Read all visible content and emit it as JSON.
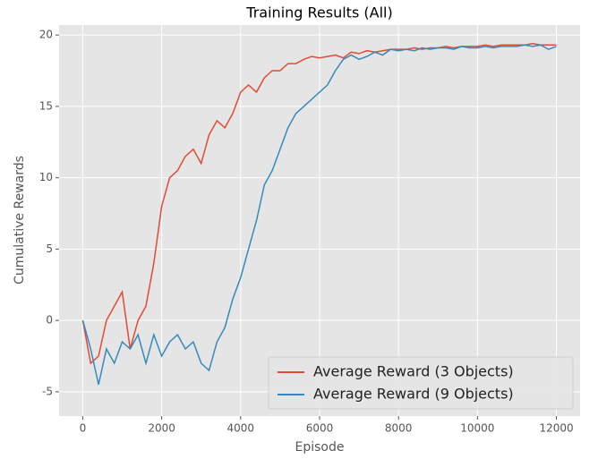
{
  "chart_data": {
    "type": "line",
    "title": "Training Results (All)",
    "xlabel": "Episode",
    "ylabel": "Cumulative Rewards",
    "x": [
      0,
      200,
      400,
      600,
      800,
      1000,
      1200,
      1400,
      1600,
      1800,
      2000,
      2200,
      2400,
      2600,
      2800,
      3000,
      3200,
      3400,
      3600,
      3800,
      4000,
      4200,
      4400,
      4600,
      4800,
      5000,
      5200,
      5400,
      5600,
      5800,
      6000,
      6200,
      6400,
      6600,
      6800,
      7000,
      7200,
      7400,
      7600,
      7800,
      8000,
      8200,
      8400,
      8600,
      8800,
      9000,
      9200,
      9400,
      9600,
      9800,
      10000,
      10200,
      10400,
      10600,
      10800,
      11000,
      11200,
      11400,
      11600,
      11800,
      12000
    ],
    "series": [
      {
        "name": "Average Reward (3 Objects)",
        "color": "#E24A33",
        "values": [
          0,
          -3,
          -2.5,
          0,
          1,
          2,
          -2,
          0,
          1,
          4,
          8,
          10,
          10.5,
          11.5,
          12,
          11,
          13,
          14,
          13.5,
          14.5,
          16,
          16.5,
          16,
          17,
          17.5,
          17.5,
          18,
          18,
          18.3,
          18.5,
          18.4,
          18.5,
          18.6,
          18.4,
          18.8,
          18.7,
          18.9,
          18.8,
          18.9,
          19,
          19,
          19,
          19.1,
          19,
          19.1,
          19.1,
          19.2,
          19.1,
          19.2,
          19.2,
          19.2,
          19.3,
          19.2,
          19.3,
          19.3,
          19.3,
          19.3,
          19.4,
          19.3,
          19.3,
          19.3
        ]
      },
      {
        "name": "Average Reward (9 Objects)",
        "color": "#348ABD",
        "values": [
          0,
          -2,
          -4.5,
          -2,
          -3,
          -1.5,
          -2,
          -1,
          -3,
          -1,
          -2.5,
          -1.5,
          -1,
          -2,
          -1.5,
          -3,
          -3.5,
          -1.5,
          -0.5,
          1.5,
          3,
          5,
          7,
          9.5,
          10.5,
          12,
          13.5,
          14.5,
          15,
          15.5,
          16,
          16.5,
          17.5,
          18.3,
          18.6,
          18.3,
          18.5,
          18.8,
          18.6,
          19,
          18.9,
          19,
          18.9,
          19.1,
          19,
          19.1,
          19.1,
          19,
          19.2,
          19.1,
          19.1,
          19.2,
          19.1,
          19.2,
          19.2,
          19.2,
          19.3,
          19.2,
          19.3,
          19,
          19.2
        ]
      }
    ],
    "xlim": [
      -600,
      12600
    ],
    "ylim": [
      -6.7,
      20.7
    ],
    "xticks": [
      0,
      2000,
      4000,
      6000,
      8000,
      10000,
      12000
    ],
    "yticks": [
      -5,
      0,
      5,
      10,
      15,
      20
    ],
    "grid": true,
    "legend": "lower right"
  }
}
